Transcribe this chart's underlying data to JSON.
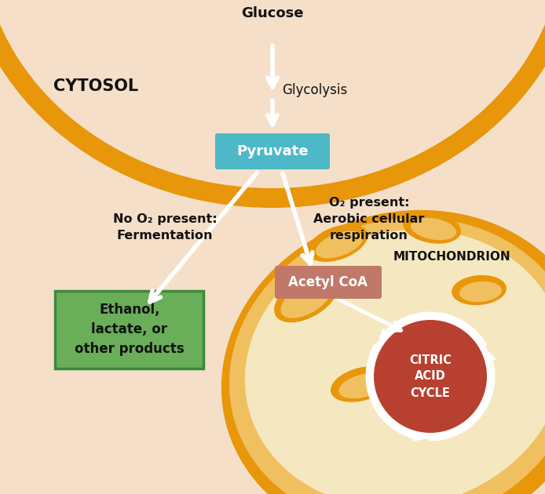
{
  "bg_color": "#f5dfc8",
  "cell_border_color": "#e8960a",
  "cell_inner_color": "#f5dfc8",
  "mito_outer_color": "#e8960a",
  "mito_inner_color": "#f0c060",
  "mito_matrix_color": "#f5e8c0",
  "pyruvate_box_color": "#4db8c8",
  "pyruvate_text_color": "#ffffff",
  "acetyl_box_color": "#c07868",
  "acetyl_text_color": "#ffffff",
  "ethanol_box_color": "#6aae5a",
  "ethanol_box_edge_color": "#3a8a3a",
  "ethanol_text_color": "#111111",
  "citric_circle_color": "#b84030",
  "citric_text_color": "#ffffff",
  "arrow_color": "#ffffff",
  "text_color": "#111111",
  "glucose_label": "Glucose",
  "cytosol_label": "CYTOSOL",
  "mito_label": "MITOCHONDRION",
  "glycolysis_label": "Glycolysis",
  "pyruvate_label": "Pyruvate",
  "no_o2_label": "No O₂ present:\nFermentation",
  "o2_label": "O₂ present:\nAerobic cellular\nrespiration",
  "ethanol_label": "Ethanol,\nlactate, or\nother products",
  "acetyl_label": "Acetyl CoA",
  "citric_label": "CITRIC\nACID\nCYCLE"
}
